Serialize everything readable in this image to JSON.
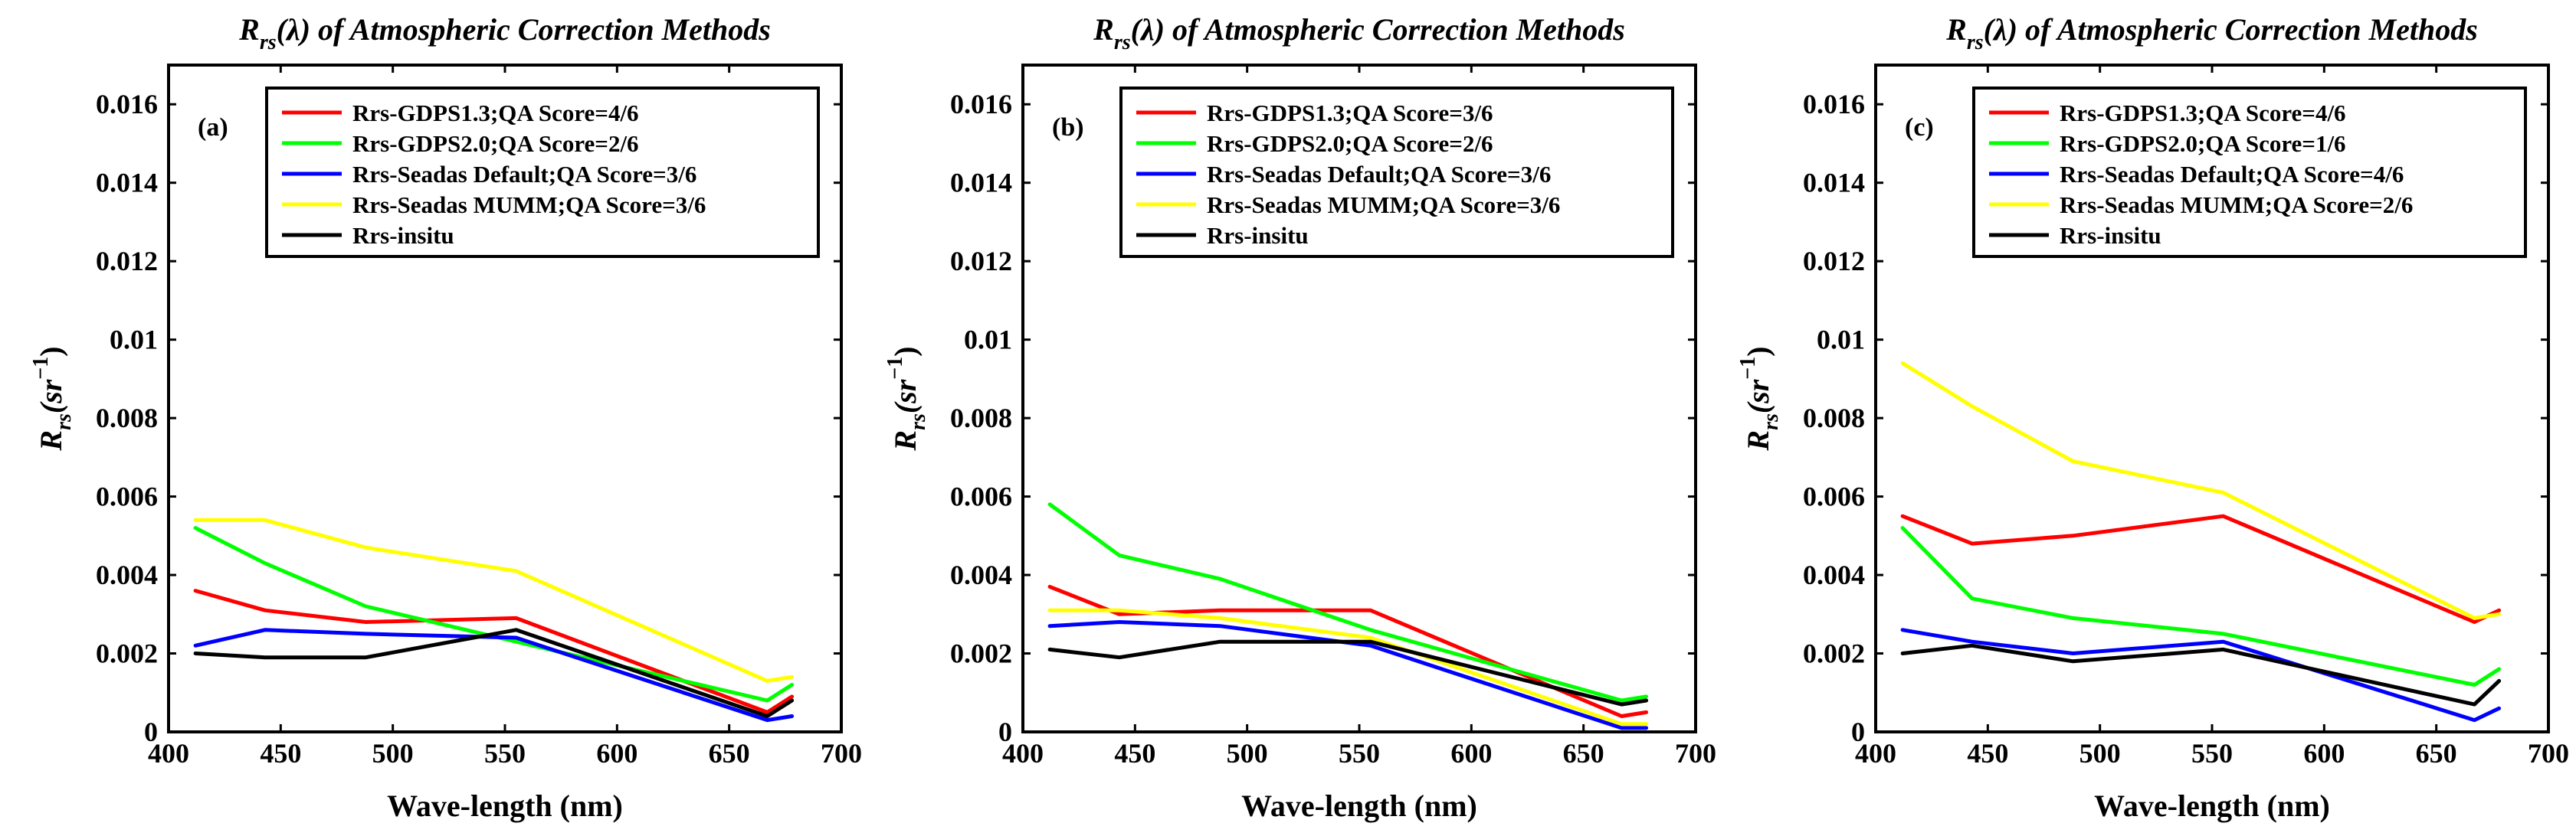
{
  "chart_data": [
    {
      "type": "line",
      "panel_label": "(a)",
      "title_parts": [
        "R",
        "rs",
        "(λ) of Atmospheric Correction Methods"
      ],
      "xlabel": "Wave-length (nm)",
      "ylabel_parts": [
        "R",
        "rs",
        "(sr",
        "−1",
        ")"
      ],
      "xlim": [
        400,
        700
      ],
      "ylim": [
        0,
        0.017
      ],
      "xticks": [
        "400",
        "450",
        "500",
        "550",
        "600",
        "650",
        "700"
      ],
      "yticks": [
        "0",
        "0.002",
        "0.004",
        "0.006",
        "0.008",
        "0.01",
        "0.012",
        "0.014",
        "0.016"
      ],
      "x": [
        412,
        443,
        488,
        555,
        667,
        678
      ],
      "legend_position": "top-right",
      "series": [
        {
          "name": "Rrs-GDPS1.3;QA Score=4/6",
          "color": "#ff0000",
          "values": [
            0.0036,
            0.0031,
            0.0028,
            0.0029,
            0.0005,
            0.0009
          ]
        },
        {
          "name": "Rrs-GDPS2.0;QA Score=2/6",
          "color": "#00ff00",
          "values": [
            0.0052,
            0.0043,
            0.0032,
            0.0023,
            0.0008,
            0.0012
          ]
        },
        {
          "name": "Rrs-Seadas Default;QA Score=3/6",
          "color": "#0000ff",
          "values": [
            0.0022,
            0.0026,
            0.0025,
            0.0024,
            0.0003,
            0.0004
          ]
        },
        {
          "name": "Rrs-Seadas MUMM;QA Score=3/6",
          "color": "#ffff00",
          "values": [
            0.0054,
            0.0054,
            0.0047,
            0.0041,
            0.0013,
            0.0014
          ]
        },
        {
          "name": "Rrs-insitu",
          "color": "#000000",
          "values": [
            0.002,
            0.0019,
            0.0019,
            0.0026,
            0.0004,
            0.0008
          ]
        }
      ]
    },
    {
      "type": "line",
      "panel_label": "(b)",
      "title_parts": [
        "R",
        "rs",
        "(λ) of Atmospheric Correction Methods"
      ],
      "xlabel": "Wave-length (nm)",
      "ylabel_parts": [
        "R",
        "rs",
        "(sr",
        "−1",
        ")"
      ],
      "xlim": [
        400,
        700
      ],
      "ylim": [
        0,
        0.017
      ],
      "xticks": [
        "400",
        "450",
        "500",
        "550",
        "600",
        "650",
        "700"
      ],
      "yticks": [
        "0",
        "0.002",
        "0.004",
        "0.006",
        "0.008",
        "0.01",
        "0.012",
        "0.014",
        "0.016"
      ],
      "x": [
        412,
        443,
        488,
        555,
        667,
        678
      ],
      "legend_position": "top-right",
      "series": [
        {
          "name": "Rrs-GDPS1.3;QA Score=3/6",
          "color": "#ff0000",
          "values": [
            0.0037,
            0.003,
            0.0031,
            0.0031,
            0.0004,
            0.0005
          ]
        },
        {
          "name": "Rrs-GDPS2.0;QA Score=2/6",
          "color": "#00ff00",
          "values": [
            0.0058,
            0.0045,
            0.0039,
            0.0026,
            0.0008,
            0.0009
          ]
        },
        {
          "name": "Rrs-Seadas Default;QA Score=3/6",
          "color": "#0000ff",
          "values": [
            0.0027,
            0.0028,
            0.0027,
            0.0022,
            0.0001,
            0.0001
          ]
        },
        {
          "name": "Rrs-Seadas MUMM;QA Score=3/6",
          "color": "#ffff00",
          "values": [
            0.0031,
            0.0031,
            0.0029,
            0.0024,
            0.0002,
            0.0002
          ]
        },
        {
          "name": "Rrs-insitu",
          "color": "#000000",
          "values": [
            0.0021,
            0.0019,
            0.0023,
            0.0023,
            0.0007,
            0.0008
          ]
        }
      ]
    },
    {
      "type": "line",
      "panel_label": "(c)",
      "title_parts": [
        "R",
        "rs",
        "(λ) of Atmospheric Correction Methods"
      ],
      "xlabel": "Wave-length (nm)",
      "ylabel_parts": [
        "R",
        "rs",
        "(sr",
        "−1",
        ")"
      ],
      "xlim": [
        400,
        700
      ],
      "ylim": [
        0,
        0.017
      ],
      "xticks": [
        "400",
        "450",
        "500",
        "550",
        "600",
        "650",
        "700"
      ],
      "yticks": [
        "0",
        "0.002",
        "0.004",
        "0.006",
        "0.008",
        "0.01",
        "0.012",
        "0.014",
        "0.016"
      ],
      "x": [
        412,
        443,
        488,
        555,
        667,
        678
      ],
      "legend_position": "top-right",
      "series": [
        {
          "name": "Rrs-GDPS1.3;QA Score=4/6",
          "color": "#ff0000",
          "values": [
            0.0055,
            0.0048,
            0.005,
            0.0055,
            0.0028,
            0.0031
          ]
        },
        {
          "name": "Rrs-GDPS2.0;QA Score=1/6",
          "color": "#00ff00",
          "values": [
            0.0052,
            0.0034,
            0.0029,
            0.0025,
            0.0012,
            0.0016
          ]
        },
        {
          "name": "Rrs-Seadas Default;QA Score=4/6",
          "color": "#0000ff",
          "values": [
            0.0026,
            0.0023,
            0.002,
            0.0023,
            0.0003,
            0.0006
          ]
        },
        {
          "name": "Rrs-Seadas MUMM;QA Score=2/6",
          "color": "#ffff00",
          "values": [
            0.0094,
            0.0083,
            0.0069,
            0.0061,
            0.0029,
            0.003
          ]
        },
        {
          "name": "Rrs-insitu",
          "color": "#000000",
          "values": [
            0.002,
            0.0022,
            0.0018,
            0.0021,
            0.0007,
            0.0013
          ]
        }
      ]
    }
  ]
}
